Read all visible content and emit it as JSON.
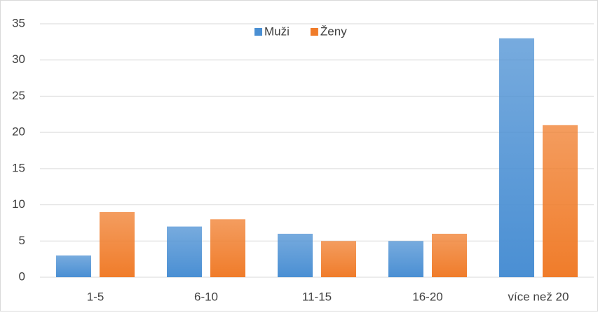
{
  "chart_data": {
    "type": "bar",
    "categories": [
      "1-5",
      "6-10",
      "11-15",
      "16-20",
      "více než 20"
    ],
    "series": [
      {
        "name": "Muži",
        "color": "#4a8fd3",
        "values": [
          3,
          7,
          6,
          5,
          33
        ]
      },
      {
        "name": "Ženy",
        "color": "#f07c2a",
        "values": [
          9,
          8,
          5,
          6,
          21
        ]
      }
    ],
    "ylim": [
      0,
      35
    ],
    "yticks": [
      0,
      5,
      10,
      15,
      20,
      25,
      30,
      35
    ],
    "grid": true,
    "legend": "top"
  }
}
